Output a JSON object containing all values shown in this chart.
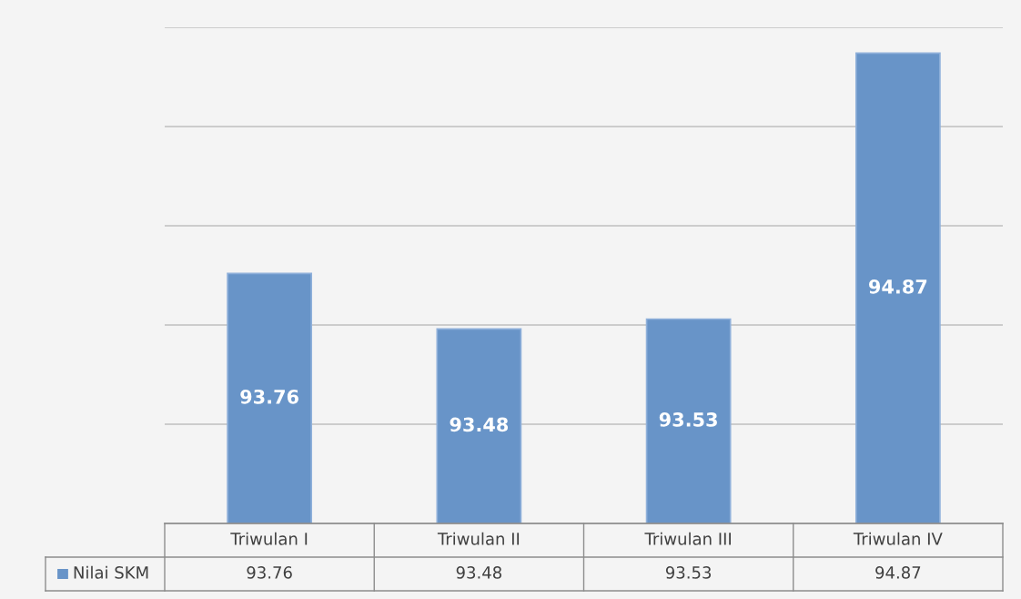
{
  "chart_data": {
    "type": "bar",
    "categories": [
      "Triwulan I",
      "Triwulan II",
      "Triwulan III",
      "Triwulan IV"
    ],
    "series": [
      {
        "name": "Nilai SKM",
        "color": "#6894c8",
        "values": [
          93.76,
          93.48,
          93.53,
          94.87
        ],
        "value_labels": [
          "93.76",
          "93.48",
          "93.53",
          "94.87"
        ]
      }
    ],
    "ylim": [
      92.5,
      95
    ],
    "yticks": [
      {
        "value": 93,
        "label": null
      },
      {
        "value": 93.5,
        "label": null
      },
      {
        "value": 94,
        "label": null
      },
      {
        "value": 94.5,
        "label": null
      },
      {
        "value": 95,
        "label": null
      }
    ],
    "annotations": [
      "93.76",
      "93.48",
      "93.53",
      "94.87"
    ],
    "grid": "y",
    "tick_labels": "x",
    "legend": "bottom"
  }
}
